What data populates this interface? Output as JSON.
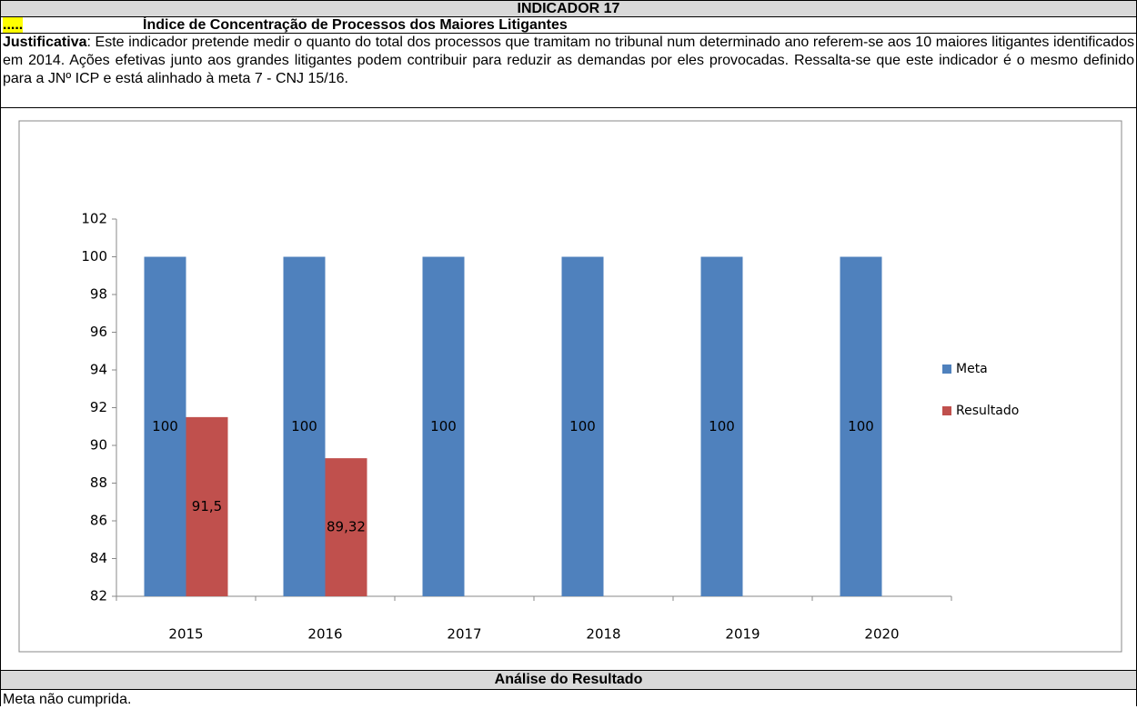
{
  "header": {
    "title": "INDICADOR 17",
    "marker": ".....",
    "subtitle": "Índice de Concentração de Processos dos Maiores Litigantes"
  },
  "justification": {
    "label": "Justificativa",
    "text": ": Este indicador pretende medir o quanto do total dos processos que tramitam no tribunal num determinado ano referem-se aos 10 maiores litigantes identificados em 2014. Ações efetivas junto aos grandes litigantes podem contribuir para reduzir as demandas por eles provocadas. Ressalta-se que este indicador é o mesmo definido para a JNº ICP e está alinhado à meta 7 - CNJ 15/16."
  },
  "chart_data": {
    "type": "bar",
    "categories": [
      "2015",
      "2016",
      "2017",
      "2018",
      "2019",
      "2020"
    ],
    "series": [
      {
        "name": "Meta",
        "color": "#4f81bd",
        "values": [
          100,
          100,
          100,
          100,
          100,
          100
        ],
        "value_labels": [
          "100",
          "100",
          "100",
          "100",
          "100",
          "100"
        ]
      },
      {
        "name": "Resultado",
        "color": "#c0504d",
        "values": [
          91.5,
          89.32,
          null,
          null,
          null,
          null
        ],
        "value_labels": [
          "91,5",
          "89,32",
          null,
          null,
          null,
          null
        ]
      }
    ],
    "ylim": [
      82,
      102
    ],
    "yticks": [
      82,
      84,
      86,
      88,
      90,
      92,
      94,
      96,
      98,
      100,
      102
    ],
    "grid": false,
    "legend": "right"
  },
  "analysis": {
    "title": "Análise do Resultado",
    "text": "Meta não cumprida."
  }
}
